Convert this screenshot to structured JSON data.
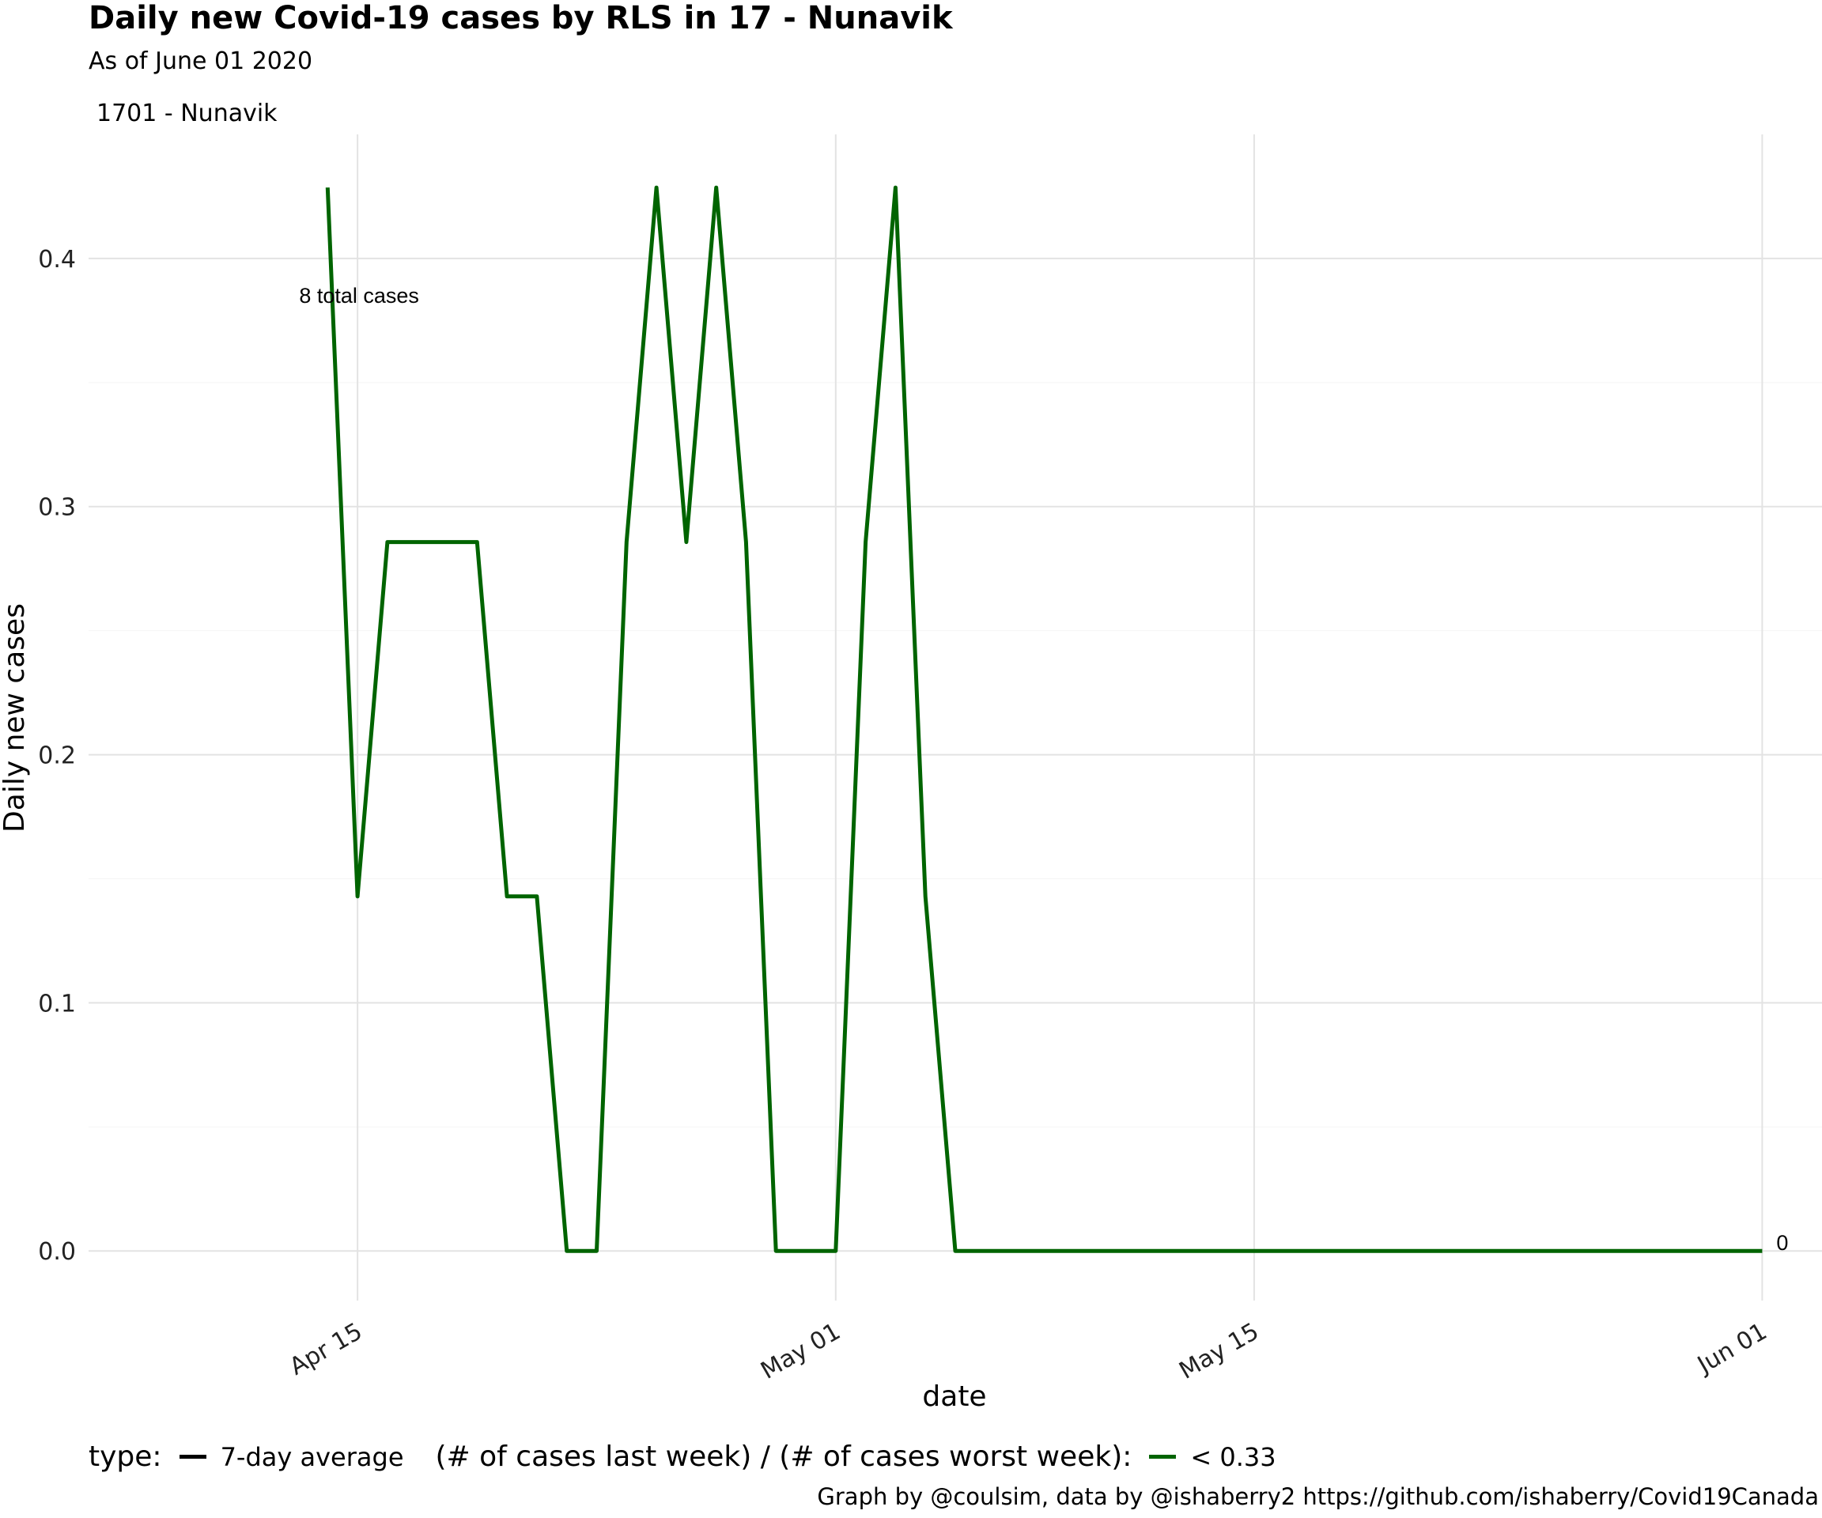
{
  "title": "Daily new Covid-19 cases by RLS in 17 - Nunavik",
  "subtitle": "As of June 01 2020",
  "facet_label": "1701 - Nunavik",
  "caption": "Graph by @coulsim, data by @ishaberry2 https://github.com/ishaberry/Covid19Canada",
  "legend": {
    "type_title": "type:",
    "type_item": "7-day average",
    "ratio_title": "(# of cases last week) / (# of cases worst week):",
    "ratio_item": "< 0.33",
    "type_color": "#000000",
    "ratio_color": "#006400"
  },
  "chart_data": {
    "type": "line",
    "xlabel": "date",
    "ylabel": "Daily new cases",
    "x_ticks": [
      "Apr 15",
      "May 01",
      "May 15",
      "Jun 01"
    ],
    "x_tick_dates": [
      "2020-04-15",
      "2020-05-01",
      "2020-05-15",
      "2020-06-01"
    ],
    "xlim": [
      "2020-04-06",
      "2020-06-03"
    ],
    "y_ticks": [
      "0.0",
      "0.1",
      "0.2",
      "0.3",
      "0.4"
    ],
    "ylim": [
      -0.02,
      0.45
    ],
    "grid": true,
    "legend_position": "bottom",
    "series": [
      {
        "name": "7-day average",
        "color": "#006400",
        "x": [
          "2020-04-14",
          "2020-04-15",
          "2020-04-16",
          "2020-04-17",
          "2020-04-18",
          "2020-04-19",
          "2020-04-20",
          "2020-04-21",
          "2020-04-22",
          "2020-04-23",
          "2020-04-24",
          "2020-04-25",
          "2020-04-26",
          "2020-04-27",
          "2020-04-28",
          "2020-04-29",
          "2020-04-30",
          "2020-05-01",
          "2020-05-02",
          "2020-05-03",
          "2020-05-04",
          "2020-05-05",
          "2020-05-06",
          "2020-05-07",
          "2020-05-08",
          "2020-05-09",
          "2020-05-10",
          "2020-05-11",
          "2020-05-12",
          "2020-05-13",
          "2020-05-14",
          "2020-05-15",
          "2020-05-16",
          "2020-05-17",
          "2020-05-18",
          "2020-05-19",
          "2020-05-20",
          "2020-05-21",
          "2020-05-22",
          "2020-05-23",
          "2020-05-24",
          "2020-05-25",
          "2020-05-26",
          "2020-05-27",
          "2020-05-28",
          "2020-05-29",
          "2020-05-30",
          "2020-05-31",
          "2020-06-01"
        ],
        "values": [
          0.4286,
          0.1429,
          0.2857,
          0.2857,
          0.2857,
          0.2857,
          0.1429,
          0.1429,
          0,
          0,
          0.2857,
          0.4286,
          0.2857,
          0.4286,
          0.2857,
          0,
          0,
          0,
          0.2857,
          0.4286,
          0.1429,
          0,
          0,
          0,
          0,
          0,
          0,
          0,
          0,
          0,
          0,
          0,
          0,
          0,
          0,
          0,
          0,
          0,
          0,
          0,
          0,
          0,
          0,
          0,
          0,
          0,
          0,
          0,
          0
        ]
      }
    ],
    "annotations": [
      {
        "text": "8 total cases",
        "x": "2020-04-15",
        "y": 0.385
      },
      {
        "text": "0",
        "x": "2020-06-01",
        "y": 0.0
      }
    ]
  }
}
